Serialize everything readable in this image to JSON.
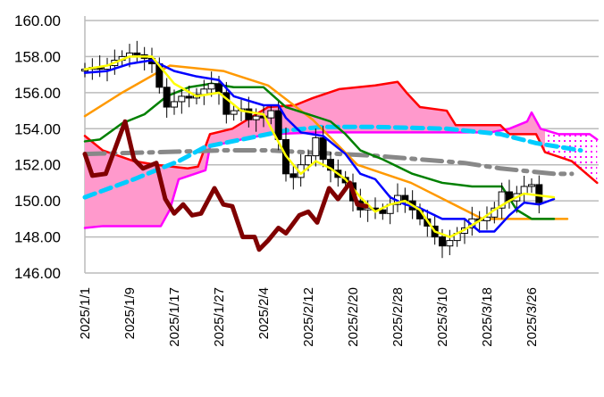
{
  "chart_data": {
    "type": "candlestick-ichimoku",
    "title": "",
    "ylim": [
      146,
      160
    ],
    "y_ticks": [
      "146.00",
      "148.00",
      "150.00",
      "152.00",
      "154.00",
      "156.00",
      "158.00",
      "160.00"
    ],
    "x_tick_labels": [
      "2025/1/1",
      "2025/1/9",
      "2025/1/17",
      "2025/1/27",
      "2025/2/4",
      "2025/2/12",
      "2025/2/20",
      "2025/2/28",
      "2025/3/10",
      "2025/3/18",
      "2025/3/26"
    ],
    "x_tick_index_step": 6,
    "x_index_range": [
      0,
      69
    ],
    "grid": true,
    "candle_closes": [
      157.3,
      157.4,
      157.3,
      157.5,
      157.8,
      158.0,
      158.2,
      158.1,
      157.9,
      157.6,
      156.3,
      155.2,
      155.5,
      155.8,
      155.7,
      155.9,
      156.2,
      156.5,
      156.0,
      154.8,
      155.0,
      155.1,
      154.5,
      154.7,
      154.6,
      155.0,
      153.4,
      151.5,
      151.3,
      152.0,
      152.5,
      153.5,
      152.3,
      151.7,
      151.3,
      151.0,
      150.0,
      149.5,
      149.6,
      149.5,
      149.3,
      149.8,
      150.3,
      150.0,
      149.5,
      149.0,
      148.6,
      148.0,
      147.5,
      147.8,
      148.2,
      148.5,
      149.0,
      148.9,
      149.1,
      149.6,
      150.5,
      150.0,
      150.4,
      150.8,
      150.9,
      149.9
    ],
    "series": [
      {
        "name": "senkou-span-b",
        "color": "#ff00ff",
        "points": [
          [
            0,
            148.5
          ],
          [
            2.4,
            148.6
          ],
          [
            10.2,
            148.6
          ],
          [
            11.4,
            149.5
          ],
          [
            12.6,
            151.2
          ],
          [
            16.2,
            151.7
          ],
          [
            16.8,
            153.0
          ],
          [
            19.8,
            153.3
          ],
          [
            24.6,
            153.7
          ],
          [
            31.8,
            153.8
          ],
          [
            54.6,
            153.8
          ],
          [
            57,
            154.0
          ],
          [
            59.4,
            154.4
          ],
          [
            60,
            154.9
          ],
          [
            61.2,
            154.0
          ],
          [
            63.6,
            153.7
          ],
          [
            67.8,
            153.7
          ],
          [
            68.8,
            153.4
          ]
        ]
      },
      {
        "name": "senkou-span-a",
        "color": "#ff0000",
        "points": [
          [
            0,
            153.6
          ],
          [
            2.4,
            152.8
          ],
          [
            6.6,
            152.2
          ],
          [
            9.6,
            152.0
          ],
          [
            13.8,
            151.8
          ],
          [
            15.2,
            151.9
          ],
          [
            16.8,
            153.7
          ],
          [
            19.8,
            154.0
          ],
          [
            24.6,
            155.2
          ],
          [
            28.2,
            155.3
          ],
          [
            30.6,
            155.7
          ],
          [
            34.2,
            156.2
          ],
          [
            39,
            156.4
          ],
          [
            42,
            156.6
          ],
          [
            43.2,
            156.0
          ],
          [
            45,
            155.2
          ],
          [
            48.6,
            155.0
          ],
          [
            49.8,
            154.2
          ],
          [
            55.8,
            154.2
          ],
          [
            57,
            153.7
          ],
          [
            60.6,
            153.7
          ],
          [
            61.8,
            152.7
          ],
          [
            65.4,
            152.2
          ],
          [
            68.8,
            151.0
          ]
        ]
      },
      {
        "name": "ma-gray",
        "color": "#888888",
        "dash": "22 8 4 8",
        "points": [
          [
            0,
            152.6
          ],
          [
            10,
            152.7
          ],
          [
            18.6,
            152.8
          ],
          [
            24.6,
            152.8
          ],
          [
            39,
            152.5
          ],
          [
            51,
            152.1
          ],
          [
            55.8,
            151.8
          ],
          [
            63,
            151.5
          ],
          [
            65.4,
            151.5
          ]
        ]
      },
      {
        "name": "ma-lightblue",
        "color": "#00ccff",
        "dash": "12 7",
        "points": [
          [
            0,
            150.2
          ],
          [
            6.6,
            151.2
          ],
          [
            12.6,
            152.2
          ],
          [
            16.2,
            153.0
          ],
          [
            22.2,
            153.5
          ],
          [
            27,
            153.9
          ],
          [
            31.8,
            154.1
          ],
          [
            39,
            154.1
          ],
          [
            48.6,
            154.0
          ],
          [
            55.8,
            153.7
          ],
          [
            60.6,
            153.2
          ],
          [
            66.6,
            152.8
          ]
        ]
      },
      {
        "name": "ma-orange",
        "color": "#ff9900",
        "points": [
          [
            0,
            154.7
          ],
          [
            5,
            156.0
          ],
          [
            11.4,
            157.5
          ],
          [
            18.6,
            157.2
          ],
          [
            24.6,
            156.4
          ],
          [
            30.6,
            154.5
          ],
          [
            36.6,
            152.0
          ],
          [
            43.8,
            151.0
          ],
          [
            48.6,
            150.0
          ],
          [
            53.4,
            149.0
          ],
          [
            58.2,
            149.0
          ],
          [
            64.8,
            149.0
          ]
        ]
      },
      {
        "name": "kijun-sen",
        "color": "#008000",
        "points": [
          [
            0,
            153.3
          ],
          [
            2,
            153.4
          ],
          [
            5,
            154.3
          ],
          [
            8,
            154.8
          ],
          [
            11,
            155.8
          ],
          [
            14,
            156.3
          ],
          [
            17,
            156.5
          ],
          [
            20,
            156.3
          ],
          [
            24,
            156.3
          ],
          [
            27,
            155.2
          ],
          [
            30,
            154.8
          ],
          [
            33,
            154.4
          ],
          [
            35,
            153.7
          ],
          [
            37,
            152.8
          ],
          [
            40,
            152.3
          ],
          [
            44,
            151.5
          ],
          [
            48,
            151.0
          ],
          [
            52,
            150.8
          ],
          [
            56,
            150.8
          ],
          [
            58,
            149.5
          ],
          [
            60,
            149.0
          ],
          [
            63,
            149.0
          ]
        ]
      },
      {
        "name": "tenkan-sen",
        "color": "#0000ff",
        "points": [
          [
            0,
            157.1
          ],
          [
            3,
            157.2
          ],
          [
            6,
            157.6
          ],
          [
            9,
            157.8
          ],
          [
            12,
            157.2
          ],
          [
            15,
            156.9
          ],
          [
            18,
            156.7
          ],
          [
            20,
            155.8
          ],
          [
            24,
            155.3
          ],
          [
            26,
            155.3
          ],
          [
            27,
            154.6
          ],
          [
            29,
            153.8
          ],
          [
            32,
            153.6
          ],
          [
            35,
            152.6
          ],
          [
            37,
            151.5
          ],
          [
            39,
            151.2
          ],
          [
            41,
            150.2
          ],
          [
            43,
            149.8
          ],
          [
            45,
            149.6
          ],
          [
            48,
            149.0
          ],
          [
            51,
            149.0
          ],
          [
            53,
            148.3
          ],
          [
            55,
            148.3
          ],
          [
            57,
            149.2
          ],
          [
            59,
            149.9
          ],
          [
            61,
            149.8
          ],
          [
            63,
            150.1
          ]
        ]
      },
      {
        "name": "ma-yellow",
        "color": "#ffff00",
        "points": [
          [
            0,
            157.3
          ],
          [
            3,
            157.5
          ],
          [
            6,
            158.0
          ],
          [
            9,
            158.0
          ],
          [
            12,
            156.5
          ],
          [
            15,
            155.8
          ],
          [
            18,
            156.0
          ],
          [
            21,
            155.0
          ],
          [
            24,
            154.8
          ],
          [
            27,
            152.5
          ],
          [
            29,
            151.5
          ],
          [
            31,
            152.2
          ],
          [
            33,
            151.8
          ],
          [
            35,
            151.2
          ],
          [
            37,
            150.2
          ],
          [
            39,
            149.4
          ],
          [
            41,
            149.8
          ],
          [
            43,
            150.0
          ],
          [
            45,
            149.5
          ],
          [
            47,
            148.3
          ],
          [
            49,
            148.0
          ],
          [
            51,
            148.4
          ],
          [
            53,
            148.9
          ],
          [
            55,
            149.5
          ],
          [
            57,
            150.0
          ],
          [
            59,
            150.4
          ],
          [
            61,
            150.3
          ],
          [
            63,
            150.2
          ]
        ]
      },
      {
        "name": "chikou-span",
        "color": "#800000",
        "points": [
          [
            0,
            152.6
          ],
          [
            1,
            151.4
          ],
          [
            2.8,
            151.5
          ],
          [
            5.4,
            154.4
          ],
          [
            6.6,
            152.3
          ],
          [
            7.8,
            151.8
          ],
          [
            9.6,
            152.1
          ],
          [
            10.8,
            150.1
          ],
          [
            12,
            149.3
          ],
          [
            13.2,
            149.8
          ],
          [
            14.4,
            149.2
          ],
          [
            15.6,
            149.3
          ],
          [
            17.4,
            150.7
          ],
          [
            18.6,
            149.8
          ],
          [
            19.8,
            149.7
          ],
          [
            21.2,
            148.0
          ],
          [
            22.8,
            148.0
          ],
          [
            23.4,
            147.3
          ],
          [
            24.6,
            147.8
          ],
          [
            26,
            148.5
          ],
          [
            27,
            148.2
          ],
          [
            28.8,
            149.2
          ],
          [
            30,
            149.4
          ],
          [
            31.2,
            148.8
          ],
          [
            32.8,
            150.7
          ],
          [
            34,
            150.1
          ],
          [
            35.6,
            151.0
          ],
          [
            36.6,
            149.8
          ],
          [
            37.8,
            149.7
          ]
        ]
      }
    ],
    "cloud": {
      "upper": "senkou-span-a",
      "lower": "senkou-span-b",
      "fill": "#ff99cc",
      "future_fill": "#ff00ff",
      "future_from_index": 61.8
    }
  }
}
